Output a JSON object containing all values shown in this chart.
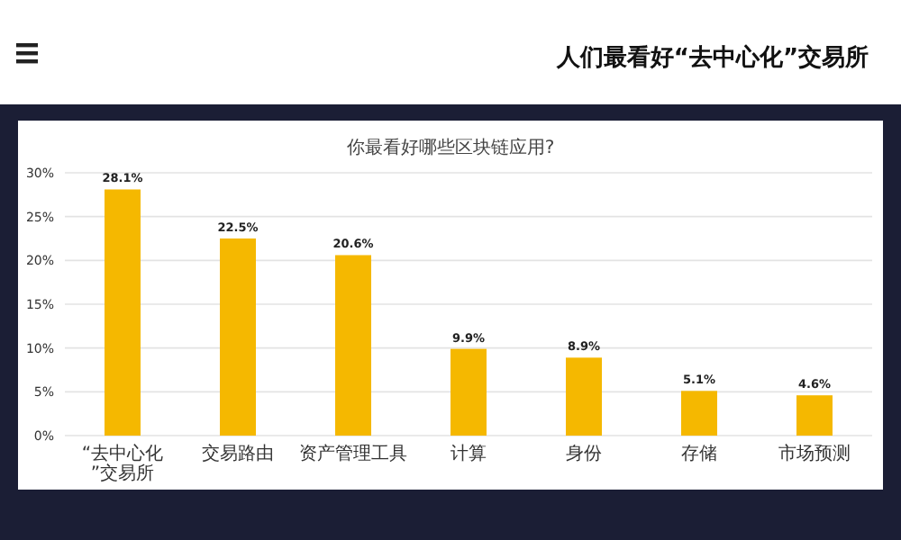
{
  "chart_data": {
    "type": "bar",
    "title": "你最看好哪些区块链应用?",
    "annotations": [
      "人们最看好“去中心化”交易所"
    ],
    "categories": [
      "“去中心化”交易所",
      "交易路由",
      "资产管理工具",
      "计算",
      "身份",
      "存储",
      "市场预测"
    ],
    "values": [
      28.1,
      22.5,
      20.6,
      9.9,
      8.9,
      5.1,
      4.6
    ],
    "value_labels": [
      "28.1%",
      "22.5%",
      "20.6%",
      "9.9%",
      "8.9%",
      "5.1%",
      "4.6%"
    ],
    "color": "#f5b800",
    "ylim": [
      0,
      30
    ],
    "yticks": [
      {
        "value": 0,
        "label": "0%"
      },
      {
        "value": 5,
        "label": "5%"
      },
      {
        "value": 10,
        "label": "10%"
      },
      {
        "value": 15,
        "label": "15%"
      },
      {
        "value": 20,
        "label": "20%"
      },
      {
        "value": 25,
        "label": "25%"
      },
      {
        "value": 30,
        "label": "30%"
      }
    ],
    "grid": "y"
  }
}
